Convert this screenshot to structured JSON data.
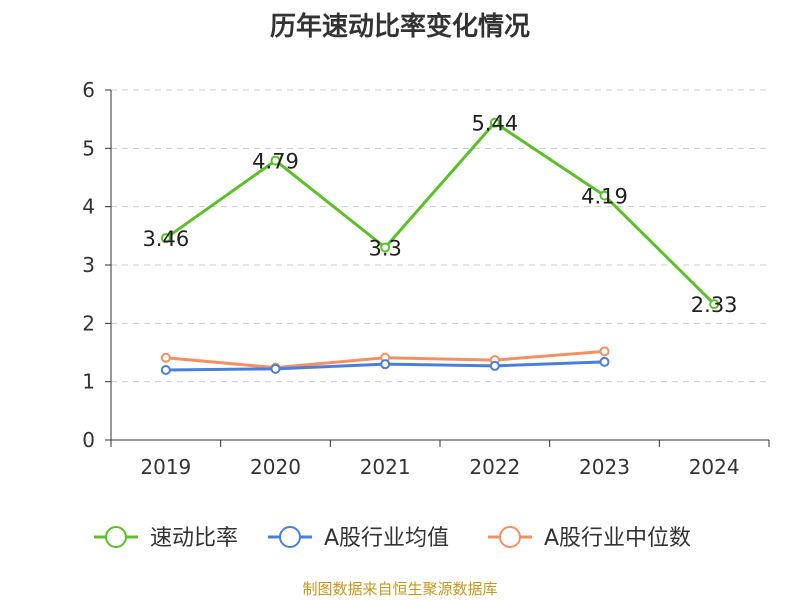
{
  "chart_data": {
    "type": "line",
    "title": "历年速动比率变化情况",
    "categories": [
      "2019",
      "2020",
      "2021",
      "2022",
      "2023",
      "2024"
    ],
    "ylim": [
      0,
      6
    ],
    "yticks": [
      "0",
      "1",
      "2",
      "3",
      "4",
      "5",
      "6"
    ],
    "grid": true,
    "legend_position": "bottom-center",
    "series": [
      {
        "name": "速动比率",
        "color": "#5cc02b",
        "values": [
          3.46,
          4.79,
          3.3,
          5.44,
          4.19,
          2.33
        ],
        "labels": [
          "3.46",
          "4.79",
          "3.3",
          "5.44",
          "4.19",
          "2.33"
        ]
      },
      {
        "name": "A股行业均值",
        "color": "#4a7fe0",
        "values": [
          1.2,
          1.22,
          1.3,
          1.27,
          1.34,
          null
        ]
      },
      {
        "name": "A股行业中位数",
        "color": "#f59064",
        "values": [
          1.41,
          1.24,
          1.41,
          1.37,
          1.52,
          null
        ]
      }
    ]
  },
  "source_text": "制图数据来自恒生聚源数据库"
}
